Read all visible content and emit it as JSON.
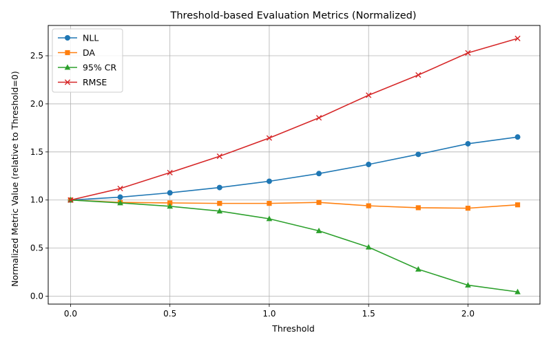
{
  "chart_data": {
    "type": "line",
    "title": "Threshold-based Evaluation Metrics (Normalized)",
    "xlabel": "Threshold",
    "ylabel": "Normalized Metric Value (relative to Threshold=0)",
    "xlim": [
      -0.1125,
      2.3625
    ],
    "ylim": [
      -0.082,
      2.815
    ],
    "xticks": [
      0.0,
      0.5,
      1.0,
      1.5,
      2.0
    ],
    "xtick_labels": [
      "0.0",
      "0.5",
      "1.0",
      "1.5",
      "2.0"
    ],
    "yticks": [
      0.0,
      0.5,
      1.0,
      1.5,
      2.0,
      2.5
    ],
    "ytick_labels": [
      "0.0",
      "0.5",
      "1.0",
      "1.5",
      "2.0",
      "2.5"
    ],
    "grid": true,
    "legend_position": "top-left",
    "x": [
      0.0,
      0.25,
      0.5,
      0.75,
      1.0,
      1.25,
      1.5,
      1.75,
      2.0,
      2.25
    ],
    "series": [
      {
        "name": "NLL",
        "color": "#1f77b4",
        "marker": "circle",
        "values": [
          1.0,
          1.03,
          1.075,
          1.13,
          1.195,
          1.275,
          1.37,
          1.475,
          1.585,
          1.655
        ]
      },
      {
        "name": "DA",
        "color": "#ff7f0e",
        "marker": "square",
        "values": [
          1.0,
          0.975,
          0.97,
          0.965,
          0.965,
          0.975,
          0.94,
          0.92,
          0.915,
          0.95
        ]
      },
      {
        "name": "95% CR",
        "color": "#2ca02c",
        "marker": "triangle",
        "values": [
          1.0,
          0.97,
          0.935,
          0.885,
          0.805,
          0.68,
          0.51,
          0.28,
          0.115,
          0.045
        ]
      },
      {
        "name": "RMSE",
        "color": "#d62728",
        "marker": "x",
        "values": [
          1.0,
          1.12,
          1.285,
          1.455,
          1.645,
          1.855,
          2.09,
          2.3,
          2.53,
          2.68
        ]
      }
    ]
  }
}
